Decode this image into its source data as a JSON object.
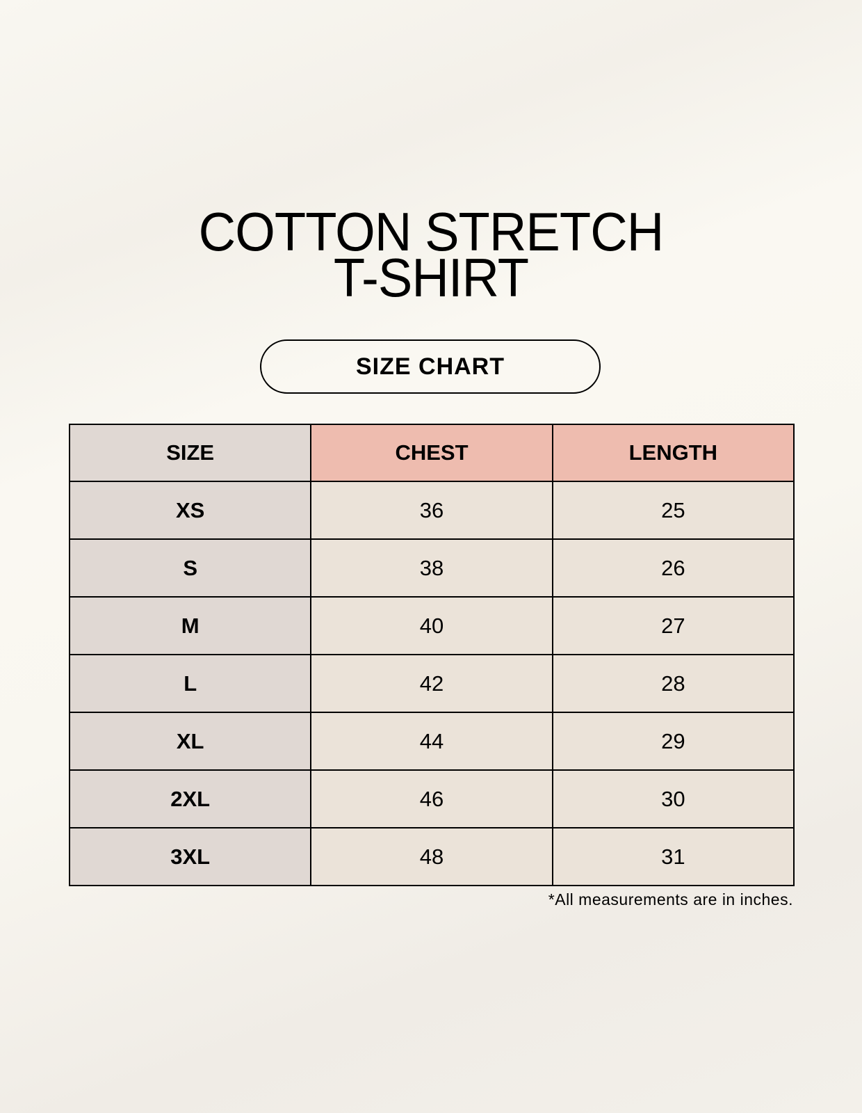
{
  "title": {
    "line1": "COTTON STRETCH",
    "line2": "T-SHIRT"
  },
  "badge": "SIZE CHART",
  "table": {
    "headers": [
      "SIZE",
      "CHEST",
      "LENGTH"
    ],
    "rows": [
      [
        "XS",
        "36",
        "25"
      ],
      [
        "S",
        "38",
        "26"
      ],
      [
        "M",
        "40",
        "27"
      ],
      [
        "L",
        "42",
        "28"
      ],
      [
        "XL",
        "44",
        "29"
      ],
      [
        "2XL",
        "46",
        "30"
      ],
      [
        "3XL",
        "48",
        "31"
      ]
    ]
  },
  "footnote": "*All measurements are in inches.",
  "colors": {
    "header_accent": "#eebcaf",
    "size_column": "#e0d8d3",
    "cell": "#ebe3d9"
  }
}
